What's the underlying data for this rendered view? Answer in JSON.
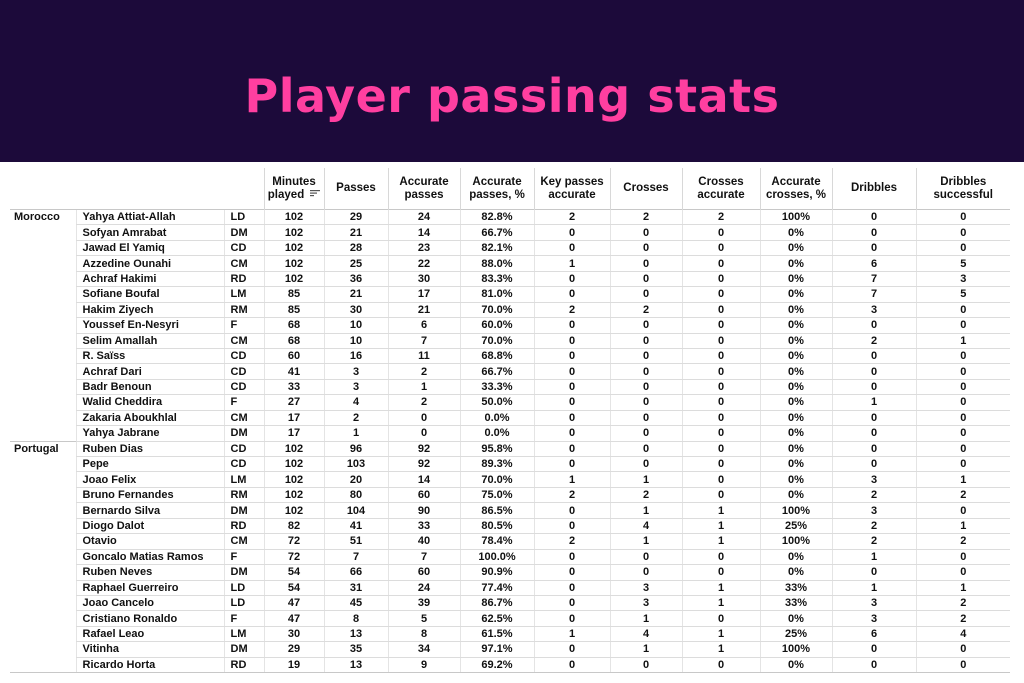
{
  "title": "Player passing stats",
  "colors": {
    "banner": "#1c0a3a",
    "title": "#ff3fa0"
  },
  "chart_data": {
    "type": "table",
    "columns": [
      "Minutes played",
      "Passes",
      "Accurate passes",
      "Accurate passes, %",
      "Key passes accurate",
      "Crosses",
      "Crosses accurate",
      "Accurate crosses, %",
      "Dribbles",
      "Dribbles successful"
    ],
    "sorted_column": "Minutes played",
    "teams": [
      {
        "name": "Morocco",
        "players": [
          {
            "name": "Yahya Attiat-Allah",
            "pos": "LD",
            "values": [
              "102",
              "29",
              "24",
              "82.8%",
              "2",
              "2",
              "2",
              "100%",
              "0",
              "0"
            ]
          },
          {
            "name": "Sofyan Amrabat",
            "pos": "DM",
            "values": [
              "102",
              "21",
              "14",
              "66.7%",
              "0",
              "0",
              "0",
              "0%",
              "0",
              "0"
            ]
          },
          {
            "name": "Jawad El Yamiq",
            "pos": "CD",
            "values": [
              "102",
              "28",
              "23",
              "82.1%",
              "0",
              "0",
              "0",
              "0%",
              "0",
              "0"
            ]
          },
          {
            "name": "Azzedine Ounahi",
            "pos": "CM",
            "values": [
              "102",
              "25",
              "22",
              "88.0%",
              "1",
              "0",
              "0",
              "0%",
              "6",
              "5"
            ]
          },
          {
            "name": "Achraf Hakimi",
            "pos": "RD",
            "values": [
              "102",
              "36",
              "30",
              "83.3%",
              "0",
              "0",
              "0",
              "0%",
              "7",
              "3"
            ]
          },
          {
            "name": "Sofiane Boufal",
            "pos": "LM",
            "values": [
              "85",
              "21",
              "17",
              "81.0%",
              "0",
              "0",
              "0",
              "0%",
              "7",
              "5"
            ]
          },
          {
            "name": "Hakim Ziyech",
            "pos": "RM",
            "values": [
              "85",
              "30",
              "21",
              "70.0%",
              "2",
              "2",
              "0",
              "0%",
              "3",
              "0"
            ]
          },
          {
            "name": "Youssef En-Nesyri",
            "pos": "F",
            "values": [
              "68",
              "10",
              "6",
              "60.0%",
              "0",
              "0",
              "0",
              "0%",
              "0",
              "0"
            ]
          },
          {
            "name": "Selim Amallah",
            "pos": "CM",
            "values": [
              "68",
              "10",
              "7",
              "70.0%",
              "0",
              "0",
              "0",
              "0%",
              "2",
              "1"
            ]
          },
          {
            "name": "R. Saïss",
            "pos": "CD",
            "values": [
              "60",
              "16",
              "11",
              "68.8%",
              "0",
              "0",
              "0",
              "0%",
              "0",
              "0"
            ]
          },
          {
            "name": "Achraf Dari",
            "pos": "CD",
            "values": [
              "41",
              "3",
              "2",
              "66.7%",
              "0",
              "0",
              "0",
              "0%",
              "0",
              "0"
            ]
          },
          {
            "name": "Badr Benoun",
            "pos": "CD",
            "values": [
              "33",
              "3",
              "1",
              "33.3%",
              "0",
              "0",
              "0",
              "0%",
              "0",
              "0"
            ]
          },
          {
            "name": "Walid Cheddira",
            "pos": "F",
            "values": [
              "27",
              "4",
              "2",
              "50.0%",
              "0",
              "0",
              "0",
              "0%",
              "1",
              "0"
            ]
          },
          {
            "name": "Zakaria Aboukhlal",
            "pos": "CM",
            "values": [
              "17",
              "2",
              "0",
              "0.0%",
              "0",
              "0",
              "0",
              "0%",
              "0",
              "0"
            ]
          },
          {
            "name": "Yahya Jabrane",
            "pos": "DM",
            "values": [
              "17",
              "1",
              "0",
              "0.0%",
              "0",
              "0",
              "0",
              "0%",
              "0",
              "0"
            ]
          }
        ]
      },
      {
        "name": "Portugal",
        "players": [
          {
            "name": "Ruben Dias",
            "pos": "CD",
            "values": [
              "102",
              "96",
              "92",
              "95.8%",
              "0",
              "0",
              "0",
              "0%",
              "0",
              "0"
            ]
          },
          {
            "name": "Pepe",
            "pos": "CD",
            "values": [
              "102",
              "103",
              "92",
              "89.3%",
              "0",
              "0",
              "0",
              "0%",
              "0",
              "0"
            ]
          },
          {
            "name": "Joao Felix",
            "pos": "LM",
            "values": [
              "102",
              "20",
              "14",
              "70.0%",
              "1",
              "1",
              "0",
              "0%",
              "3",
              "1"
            ]
          },
          {
            "name": "Bruno Fernandes",
            "pos": "RM",
            "values": [
              "102",
              "80",
              "60",
              "75.0%",
              "2",
              "2",
              "0",
              "0%",
              "2",
              "2"
            ]
          },
          {
            "name": "Bernardo Silva",
            "pos": "DM",
            "values": [
              "102",
              "104",
              "90",
              "86.5%",
              "0",
              "1",
              "1",
              "100%",
              "3",
              "0"
            ]
          },
          {
            "name": "Diogo Dalot",
            "pos": "RD",
            "values": [
              "82",
              "41",
              "33",
              "80.5%",
              "0",
              "4",
              "1",
              "25%",
              "2",
              "1"
            ]
          },
          {
            "name": "Otavio",
            "pos": "CM",
            "values": [
              "72",
              "51",
              "40",
              "78.4%",
              "2",
              "1",
              "1",
              "100%",
              "2",
              "2"
            ]
          },
          {
            "name": "Goncalo Matias Ramos",
            "pos": "F",
            "values": [
              "72",
              "7",
              "7",
              "100.0%",
              "0",
              "0",
              "0",
              "0%",
              "1",
              "0"
            ]
          },
          {
            "name": "Ruben Neves",
            "pos": "DM",
            "values": [
              "54",
              "66",
              "60",
              "90.9%",
              "0",
              "0",
              "0",
              "0%",
              "0",
              "0"
            ]
          },
          {
            "name": "Raphael Guerreiro",
            "pos": "LD",
            "values": [
              "54",
              "31",
              "24",
              "77.4%",
              "0",
              "3",
              "1",
              "33%",
              "1",
              "1"
            ]
          },
          {
            "name": "Joao Cancelo",
            "pos": "LD",
            "values": [
              "47",
              "45",
              "39",
              "86.7%",
              "0",
              "3",
              "1",
              "33%",
              "3",
              "2"
            ]
          },
          {
            "name": "Cristiano Ronaldo",
            "pos": "F",
            "values": [
              "47",
              "8",
              "5",
              "62.5%",
              "0",
              "1",
              "0",
              "0%",
              "3",
              "2"
            ]
          },
          {
            "name": "Rafael Leao",
            "pos": "LM",
            "values": [
              "30",
              "13",
              "8",
              "61.5%",
              "1",
              "4",
              "1",
              "25%",
              "6",
              "4"
            ]
          },
          {
            "name": "Vitinha",
            "pos": "DM",
            "values": [
              "29",
              "35",
              "34",
              "97.1%",
              "0",
              "1",
              "1",
              "100%",
              "0",
              "0"
            ]
          },
          {
            "name": "Ricardo Horta",
            "pos": "RD",
            "values": [
              "19",
              "13",
              "9",
              "69.2%",
              "0",
              "0",
              "0",
              "0%",
              "0",
              "0"
            ]
          }
        ]
      }
    ]
  }
}
